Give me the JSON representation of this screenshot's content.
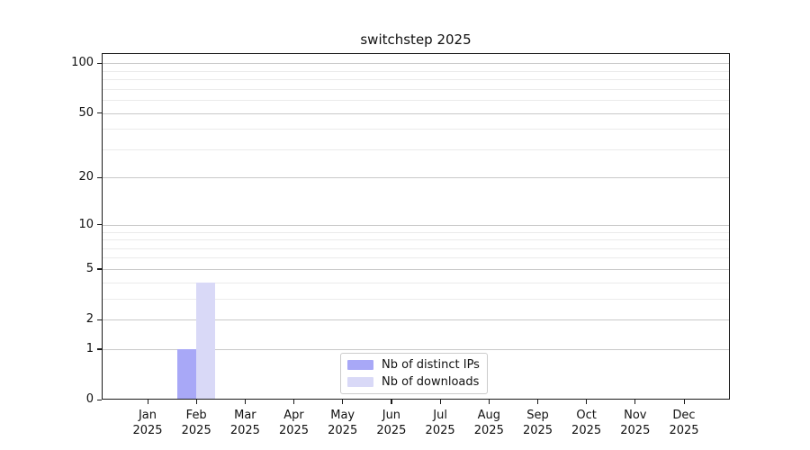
{
  "chart_data": {
    "type": "bar",
    "title": "switchstep 2025",
    "months": [
      "Jan",
      "Feb",
      "Mar",
      "Apr",
      "May",
      "Jun",
      "Jul",
      "Aug",
      "Sep",
      "Oct",
      "Nov",
      "Dec"
    ],
    "year": "2025",
    "series": [
      {
        "name": "Nb of distinct IPs",
        "color": "#a8a8f7",
        "values": [
          0,
          1,
          0,
          0,
          0,
          0,
          0,
          0,
          0,
          0,
          0,
          0
        ]
      },
      {
        "name": "Nb of downloads",
        "color": "#d9d9f7",
        "values": [
          0,
          4,
          0,
          0,
          0,
          0,
          0,
          0,
          0,
          0,
          0,
          0
        ]
      }
    ],
    "yscale": "log1p",
    "ylim": [
      0,
      115
    ],
    "ytick_values": [
      0,
      1,
      2,
      5,
      10,
      20,
      50,
      100
    ],
    "yminor_values": [
      3,
      4,
      6,
      7,
      8,
      9,
      30,
      40,
      60,
      70,
      80,
      90
    ],
    "grid": "horizontal",
    "legend_position": "inside-bottom-center"
  },
  "colors": {
    "frame": "#1a1a1a",
    "grid_major": "#c9c9c9",
    "grid_minor": "#ebebeb",
    "text": "#111111",
    "legend_border": "#cccccc",
    "background": "#ffffff"
  }
}
